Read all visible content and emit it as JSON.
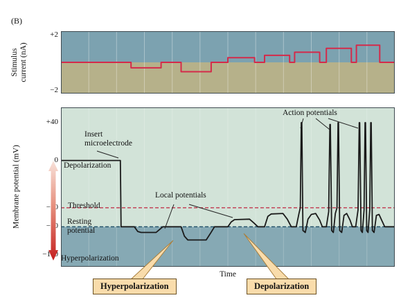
{
  "figure_label": "(B)",
  "colors": {
    "panel_blue": "#7ca2b0",
    "panel_blue2": "#86a9b4",
    "panel_olive": "#b6b18a",
    "panel_green": "#d2e3d8",
    "trace_red": "#d42a4a",
    "membrane_black": "#1a1a1a",
    "threshold_red": "#c0243f",
    "resting_navy": "#1f4e66",
    "callout_bg": "#f9dcab",
    "arrow_red": "#c41f1f"
  },
  "chart_data": [
    {
      "type": "line",
      "title": "",
      "ylabel": "Stimulus current (nA)",
      "ylabel_lines": [
        "Stimulus",
        "current (nA)"
      ],
      "xlabel": "",
      "ylim": [
        -2,
        2
      ],
      "x_range": [
        0,
        100
      ],
      "grid": "faint vertical lines",
      "yticks": [
        {
          "label": "+2",
          "value": 2
        },
        {
          "label": "−2",
          "value": -2
        }
      ],
      "series": [
        {
          "name": "stimulus current",
          "color": "#d42a4a",
          "segments": [
            [
              0,
              21,
              0
            ],
            [
              21,
              30,
              -0.35
            ],
            [
              30,
              36,
              0
            ],
            [
              36,
              45,
              -0.6
            ],
            [
              45,
              50,
              0
            ],
            [
              50,
              58,
              0.3
            ],
            [
              58,
              61,
              0
            ],
            [
              61,
              68.5,
              0.45
            ],
            [
              68.5,
              70,
              0
            ],
            [
              70,
              77.5,
              0.65
            ],
            [
              77.5,
              79.5,
              0
            ],
            [
              79.5,
              87,
              0.9
            ],
            [
              87,
              88.5,
              0
            ],
            [
              88.5,
              95.5,
              1.1
            ],
            [
              95.5,
              100,
              0
            ]
          ]
        }
      ]
    },
    {
      "type": "line",
      "title": "",
      "ylabel": "Membrane potential (mV)",
      "xlabel": "Time",
      "ylim": [
        -112,
        56
      ],
      "x_range": [
        0,
        100
      ],
      "yticks": [
        {
          "label": "+40",
          "value": 40
        },
        {
          "label": "0",
          "value": 0
        },
        {
          "label": "−50",
          "value": -50
        },
        {
          "label": "−70",
          "value": -70
        },
        {
          "label": "−100",
          "value": -100
        }
      ],
      "reference_lines": [
        {
          "name": "Threshold",
          "value": -50,
          "style": "dashed",
          "color": "#c0243f"
        },
        {
          "name": "Resting potential",
          "value": -70,
          "style": "dashed",
          "color": "#1f4e66"
        }
      ],
      "series": [
        {
          "name": "membrane potential",
          "color": "#1a1a1a",
          "points": [
            [
              0,
              0
            ],
            [
              17.8,
              0
            ],
            [
              18,
              -70
            ],
            [
              21,
              -70
            ],
            [
              22,
              -70
            ],
            [
              23,
              -75
            ],
            [
              24,
              -76
            ],
            [
              28.5,
              -76
            ],
            [
              29.5,
              -73
            ],
            [
              30.5,
              -70
            ],
            [
              36,
              -70
            ],
            [
              37,
              -80
            ],
            [
              38,
              -84
            ],
            [
              43.5,
              -84
            ],
            [
              44.8,
              -77
            ],
            [
              46,
              -70
            ],
            [
              50,
              -70
            ],
            [
              51,
              -65
            ],
            [
              52,
              -62.5
            ],
            [
              56.5,
              -62
            ],
            [
              57.8,
              -66
            ],
            [
              59,
              -70
            ],
            [
              61,
              -70
            ],
            [
              62,
              -59
            ],
            [
              63,
              -56.5
            ],
            [
              66.5,
              -56
            ],
            [
              67.8,
              -62
            ],
            [
              69,
              -70
            ],
            [
              70.5,
              -70
            ],
            [
              71.3,
              -56
            ],
            [
              71.7,
              -50
            ],
            [
              72,
              40
            ],
            [
              72.15,
              40
            ],
            [
              72.5,
              -74
            ],
            [
              73.2,
              -76
            ],
            [
              74,
              -62
            ],
            [
              75,
              -57
            ],
            [
              76.3,
              -56
            ],
            [
              77.5,
              -63
            ],
            [
              78.3,
              -70
            ],
            [
              79.5,
              -70
            ],
            [
              80.2,
              -54
            ],
            [
              80.55,
              38
            ],
            [
              80.7,
              38
            ],
            [
              81.1,
              -74
            ],
            [
              81.6,
              -76
            ],
            [
              82.2,
              -56
            ],
            [
              82.7,
              -50
            ],
            [
              83,
              40
            ],
            [
              83.15,
              40
            ],
            [
              83.5,
              -74
            ],
            [
              84.1,
              -76
            ],
            [
              84.8,
              -58
            ],
            [
              85.6,
              -56
            ],
            [
              86.6,
              -63
            ],
            [
              87.3,
              -70
            ],
            [
              88.3,
              -70
            ],
            [
              89,
              -52
            ],
            [
              89.35,
              40
            ],
            [
              89.5,
              40
            ],
            [
              89.9,
              -74
            ],
            [
              90.3,
              -76
            ],
            [
              90.8,
              -52
            ],
            [
              91.1,
              40
            ],
            [
              91.25,
              40
            ],
            [
              91.6,
              -74
            ],
            [
              92,
              -76
            ],
            [
              92.5,
              -52
            ],
            [
              92.8,
              40
            ],
            [
              92.95,
              40
            ],
            [
              93.3,
              -74
            ],
            [
              93.8,
              -76
            ],
            [
              94.5,
              -58
            ],
            [
              95.3,
              -57
            ],
            [
              96.2,
              -64
            ],
            [
              97,
              -70
            ],
            [
              100,
              -70
            ]
          ]
        }
      ],
      "annotations": {
        "insert_line1": "Insert",
        "insert_line2": "microelectrode",
        "depolarization": "Depolarization",
        "threshold": "Threshold",
        "resting_line1": "Resting",
        "resting_line2": "potential",
        "hyperpolarization": "Hyperpolarization",
        "local_potentials": "Local potentials",
        "action_potentials": "Action potentials",
        "xlabel": "Time"
      }
    }
  ],
  "callouts": {
    "hyper": "Hyperpolarization",
    "depol": "Depolarization"
  }
}
